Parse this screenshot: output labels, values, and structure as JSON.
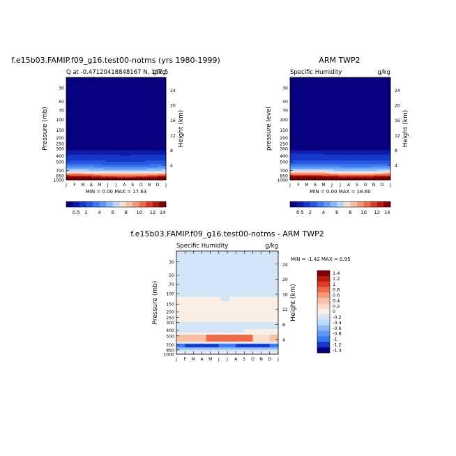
{
  "chart_data": [
    {
      "type": "heatmap",
      "title": "f.e15b03.FAMIP.f09_g16.test00-notms (yrs 1980-1999)",
      "subtitle_left": "Q at -0.47120418848167 N, 167.5",
      "subtitle_right": "g/kg",
      "ylabel": "Pressure (mb)",
      "ylabel_right": "Height (km)",
      "x_months": [
        "J",
        "F",
        "M",
        "A",
        "M",
        "J",
        "J",
        "A",
        "S",
        "O",
        "N",
        "D",
        "J"
      ],
      "y_pressure_ticks": [
        "30",
        "50",
        "70",
        "100",
        "150",
        "200",
        "250",
        "300",
        "400",
        "500",
        "700",
        "850",
        "1000"
      ],
      "y_height_ticks": [
        "24",
        "20",
        "16",
        "12",
        "8",
        "4"
      ],
      "min_label": "MIN =",
      "min_value": "0.00",
      "max_label": "MAX =",
      "max_value": "17.63",
      "colorbar_labels": [
        "0.5",
        "2",
        "4",
        "6",
        "8",
        "10",
        "12",
        "14"
      ],
      "field": "model",
      "transition_level_mb": 330
    },
    {
      "type": "heatmap",
      "title": "ARM TWP2",
      "subtitle_left": "Specific Humidity",
      "subtitle_right": "g/kg",
      "ylabel": "pressure level",
      "ylabel_right": "Height (km)",
      "x_months": [
        "J",
        "F",
        "M",
        "A",
        "M",
        "J",
        "J",
        "A",
        "S",
        "O",
        "N",
        "D",
        "J"
      ],
      "y_pressure_ticks": [
        "30",
        "50",
        "70",
        "100",
        "150",
        "200",
        "250",
        "300",
        "400",
        "500",
        "700",
        "850",
        "1000"
      ],
      "y_height_ticks": [
        "24",
        "20",
        "16",
        "12",
        "8",
        "4"
      ],
      "min_label": "MIN =",
      "min_value": "0.00",
      "max_label": "MAX =",
      "max_value": "18.60",
      "colorbar_labels": [
        "0.5",
        "2",
        "4",
        "6",
        "8",
        "10",
        "12",
        "14"
      ],
      "field": "obs",
      "transition_level_mb": 330
    },
    {
      "type": "heatmap",
      "title": "f.e15b03.FAMIP.f09_g16.test00-notms - ARM TWP2",
      "subtitle_left": "Specific Humidity",
      "subtitle_right": "g/kg",
      "ylabel": "Pressure (mb)",
      "ylabel_right": "Height (km)",
      "x_months": [
        "J",
        "F",
        "M",
        "A",
        "M",
        "J",
        "J",
        "A",
        "S",
        "O",
        "N",
        "D",
        "J"
      ],
      "y_pressure_ticks": [
        "30",
        "50",
        "70",
        "100",
        "150",
        "200",
        "250",
        "300",
        "400",
        "500",
        "700",
        "850",
        "1000"
      ],
      "y_height_ticks": [
        "24",
        "20",
        "16",
        "12",
        "8",
        "4"
      ],
      "min_label": "MIN =",
      "min_value": "-1.42",
      "max_label": "MAX =",
      "max_value": "0.95",
      "colorbar_labels": [
        "1.4",
        "1.2",
        "1",
        "0.8",
        "0.6",
        "0.4",
        "0.2",
        "0",
        "-0.2",
        "-0.4",
        "-0.6",
        "-0.8",
        "-1",
        "-1.2",
        "-1.4"
      ],
      "field": "diff"
    }
  ],
  "colors": {
    "seq_scale": [
      "#08007f",
      "#0e1aa8",
      "#1638c8",
      "#2456e0",
      "#3a78ef",
      "#6098f5",
      "#8db8fa",
      "#bcd7fd",
      "#f4e0d4",
      "#f7c0a4",
      "#f39a78",
      "#ec6c4c",
      "#dc3c24",
      "#b81810",
      "#7e0000"
    ],
    "div_scale": [
      "#7e0000",
      "#b81810",
      "#dc3c24",
      "#ec6c4c",
      "#f39a78",
      "#f7c0a4",
      "#f6ddd0",
      "#fbeee6",
      "#d3e5f8",
      "#bcd7fd",
      "#8db8fa",
      "#6098f5",
      "#3a78ef",
      "#1638c8",
      "#08007f"
    ]
  }
}
